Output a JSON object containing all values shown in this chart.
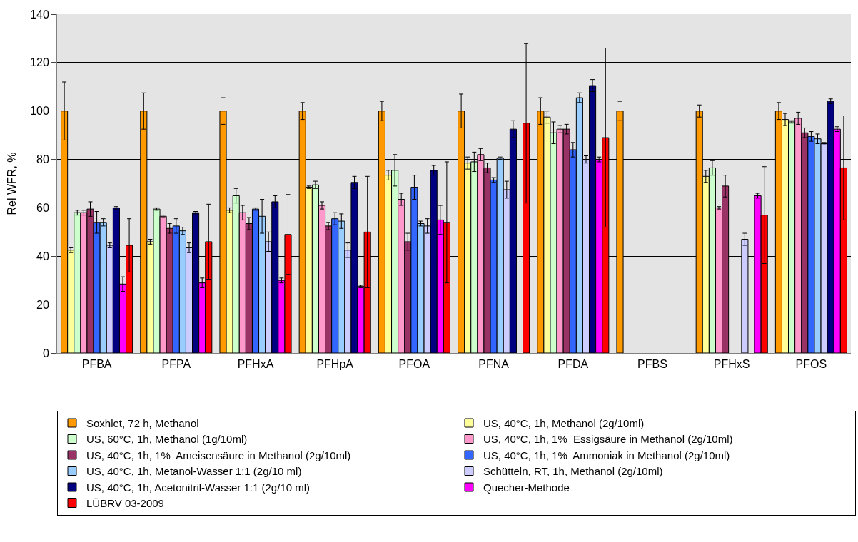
{
  "chart_data": {
    "type": "bar",
    "ylabel": "Rel WFR, %",
    "categories": [
      "PFBA",
      "PFPA",
      "PFHxA",
      "PFHpA",
      "PFOA",
      "PFNA",
      "PFDA",
      "PFBS",
      "PFHxS",
      "PFOS"
    ],
    "ylim": [
      0,
      140
    ],
    "yticks": [
      0,
      20,
      40,
      60,
      80,
      100,
      120,
      140
    ],
    "grid": "y",
    "legend": "bottom",
    "series": [
      {
        "name": "Soxhlet, 72 h, Methanol",
        "color": "#ff9900",
        "values": [
          100,
          100,
          100,
          100,
          100,
          100,
          100,
          100,
          100,
          100
        ],
        "errors": [
          12,
          7.5,
          5.5,
          3.5,
          4,
          7,
          5.5,
          4,
          2.5,
          3.5
        ]
      },
      {
        "name": "US, 40°C, 1h, Methanol (2g/10ml)",
        "color": "#ffff99",
        "values": [
          42.5,
          46,
          59,
          68.5,
          73.5,
          78.5,
          97.5,
          null,
          73,
          96.5
        ],
        "errors": [
          1,
          1,
          1,
          0.5,
          2,
          2.5,
          2.5,
          null,
          2.5,
          2.5
        ]
      },
      {
        "name": "US, 60°C, 1h, Methanol (1g/10ml)",
        "color": "#ccffcc",
        "values": [
          58,
          59.5,
          65,
          69.5,
          75.5,
          79,
          91,
          null,
          76.5,
          95.5
        ],
        "errors": [
          1,
          0.5,
          3,
          1.5,
          6.5,
          4,
          4.5,
          null,
          3,
          0.5
        ]
      },
      {
        "name": "US, 40°C, 1h, 1%  Essigsäure in Methanol (2g/10ml)",
        "color": "#ff99cc",
        "values": [
          58,
          56.5,
          58,
          61,
          63.5,
          82,
          92.5,
          null,
          60,
          97
        ],
        "errors": [
          1,
          0.5,
          3,
          1.5,
          2.5,
          2.5,
          1.5,
          null,
          0.5,
          2.5
        ]
      },
      {
        "name": "US, 40°C, 1h, 1%  Ameisensäure in Methanol (2g/10ml)",
        "color": "#993366",
        "values": [
          59.5,
          51.5,
          53.5,
          52.5,
          46,
          76.5,
          92.5,
          null,
          69,
          91
        ],
        "errors": [
          3,
          2,
          2.5,
          1.5,
          3.5,
          2,
          2,
          null,
          4.5,
          2
        ]
      },
      {
        "name": "US, 40°C, 1h, 1%  Ammoniak in Methanol (2g/10ml)",
        "color": "#3366ff",
        "values": [
          54,
          52.5,
          59.5,
          55.5,
          68.5,
          71.5,
          84,
          null,
          null,
          89.5
        ],
        "errors": [
          4.5,
          3,
          0.5,
          2.5,
          5,
          1,
          3,
          null,
          null,
          2
        ]
      },
      {
        "name": "US, 40°C, 1h, Metanol-Wasser 1:1 (2g/10 ml)",
        "color": "#99ccff",
        "values": [
          54,
          50.5,
          56.5,
          54.5,
          53.5,
          80.5,
          105.5,
          null,
          null,
          88.5
        ],
        "errors": [
          1.5,
          1.5,
          7,
          3,
          1,
          0.5,
          2,
          null,
          null,
          2
        ]
      },
      {
        "name": "Schütteln, RT, 1h, Methanol (2g/10ml)",
        "color": "#ccccff",
        "values": [
          44.5,
          43.5,
          46,
          42.5,
          52.5,
          67.5,
          80,
          null,
          47,
          86.5
        ],
        "errors": [
          1,
          2,
          4,
          3,
          3,
          3.5,
          1.5,
          null,
          2.5,
          0.5
        ]
      },
      {
        "name": "US, 40°C, 1h, Acetonitril-Wasser 1:1 (2g/10 ml)",
        "color": "#000080",
        "values": [
          60,
          58,
          62.5,
          70.5,
          75.5,
          92.5,
          110.5,
          null,
          null,
          104
        ],
        "errors": [
          0.5,
          0.5,
          2.5,
          2.5,
          2,
          3.5,
          2.5,
          null,
          null,
          1
        ]
      },
      {
        "name": "Quecher-Methode",
        "color": "#ff00ff",
        "values": [
          28.5,
          29,
          30,
          27.5,
          55,
          null,
          80,
          null,
          65,
          92.5
        ],
        "errors": [
          3,
          2,
          1,
          0.5,
          6,
          null,
          1,
          null,
          1,
          1
        ]
      },
      {
        "name": "LÜBRV 03-2009",
        "color": "#ff0000",
        "values": [
          44.5,
          46,
          49,
          50,
          54,
          95,
          89,
          null,
          57,
          76.5
        ],
        "errors": [
          11,
          15.5,
          16.5,
          23,
          25,
          33,
          37,
          null,
          20,
          21.5
        ]
      }
    ]
  }
}
